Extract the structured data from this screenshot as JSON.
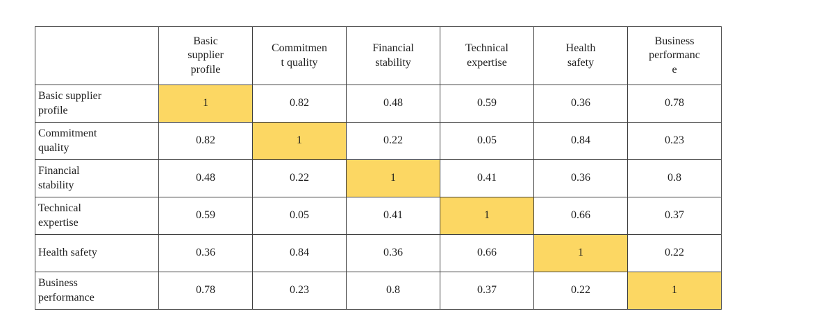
{
  "colors": {
    "highlight": "#FCD763",
    "border": "#3f3f3f",
    "text": "#1f1f1f",
    "page_bg": "#ffffff"
  },
  "table": {
    "corner_label": "",
    "column_headers": [
      "Basic\nsupplier\nprofile",
      "Commitmen\nt quality",
      "Financial\nstability",
      "Technical\nexpertise",
      "Health\nsafety",
      "Business\nperformanc\ne"
    ],
    "rows": [
      {
        "label": "Basic supplier\nprofile",
        "values": [
          "1",
          "0.82",
          "0.48",
          "0.59",
          "0.36",
          "0.78"
        ]
      },
      {
        "label": "Commitment\nquality",
        "values": [
          "0.82",
          "1",
          "0.22",
          "0.05",
          "0.84",
          "0.23"
        ]
      },
      {
        "label": "Financial\nstability",
        "values": [
          "0.48",
          "0.22",
          "1",
          "0.41",
          "0.36",
          "0.8"
        ]
      },
      {
        "label": "Technical\nexpertise",
        "values": [
          "0.59",
          "0.05",
          "0.41",
          "1",
          "0.66",
          "0.37"
        ]
      },
      {
        "label": "Health safety",
        "values": [
          "0.36",
          "0.84",
          "0.36",
          "0.66",
          "1",
          "0.22"
        ]
      },
      {
        "label": "Business\nperformance",
        "values": [
          "0.78",
          "0.23",
          "0.8",
          "0.37",
          "0.22",
          "1"
        ]
      }
    ]
  },
  "chart_data": {
    "type": "table",
    "subtype": "correlation-matrix",
    "title": "",
    "row_labels": [
      "Basic supplier profile",
      "Commitment quality",
      "Financial stability",
      "Technical expertise",
      "Health safety",
      "Business performance"
    ],
    "column_labels": [
      "Basic supplier profile",
      "Commitment quality",
      "Financial stability",
      "Technical expertise",
      "Health safety",
      "Business performance"
    ],
    "matrix": [
      [
        1,
        0.82,
        0.48,
        0.59,
        0.36,
        0.78
      ],
      [
        0.82,
        1,
        0.22,
        0.05,
        0.84,
        0.23
      ],
      [
        0.48,
        0.22,
        1,
        0.41,
        0.36,
        0.8
      ],
      [
        0.59,
        0.05,
        0.41,
        1,
        0.66,
        0.37
      ],
      [
        0.36,
        0.84,
        0.36,
        0.66,
        1,
        0.22
      ],
      [
        0.78,
        0.23,
        0.8,
        0.37,
        0.22,
        1
      ]
    ],
    "diagonal_highlighted": true,
    "diagonal_highlight_color": "#FCD763",
    "grid": true,
    "legend": false
  }
}
